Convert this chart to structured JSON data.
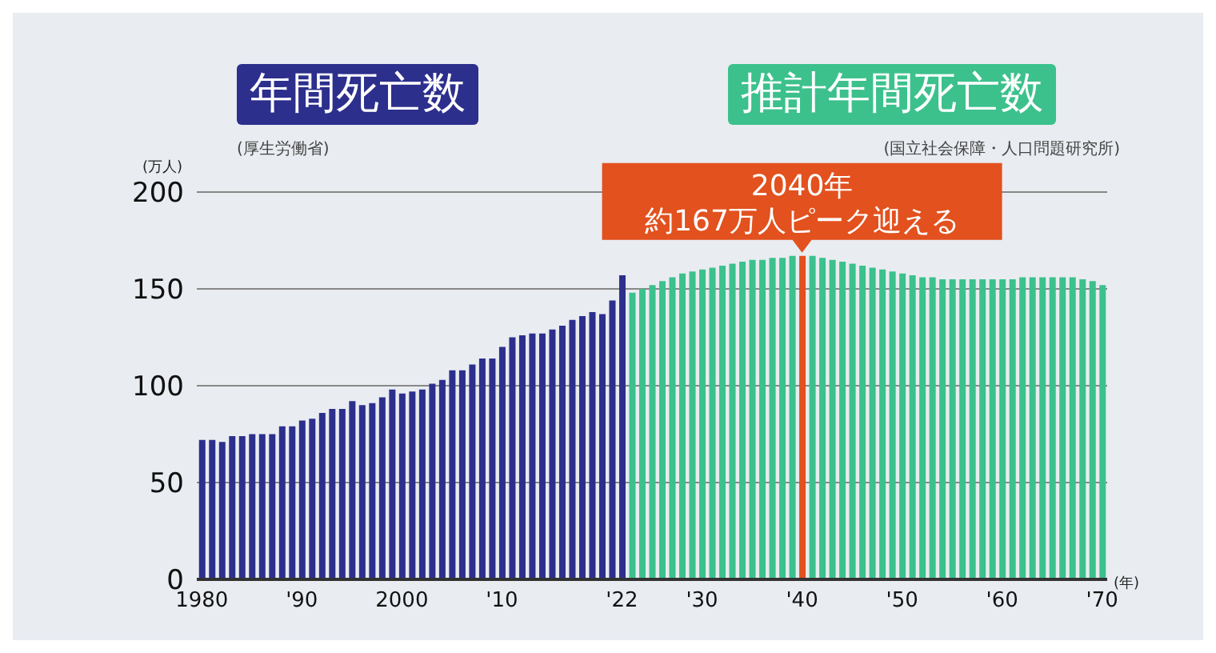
{
  "chart_data": {
    "type": "bar",
    "stacked": true,
    "ylabel": "(万人)",
    "xlabel": "(年)",
    "categories": [
      "1980",
      null,
      null,
      null,
      null,
      null,
      null,
      null,
      null,
      null,
      "'90",
      null,
      null,
      null,
      null,
      null,
      null,
      null,
      null,
      null,
      "2000",
      null,
      null,
      null,
      null,
      null,
      null,
      null,
      null,
      null,
      "'10",
      null,
      null,
      null,
      null,
      null,
      null,
      null,
      null,
      null,
      null,
      null,
      "'22",
      null,
      null,
      null,
      null,
      null,
      null,
      null,
      "'30",
      null,
      null,
      null,
      null,
      null,
      null,
      null,
      null,
      null,
      "'40",
      null,
      null,
      null,
      null,
      null,
      null,
      null,
      null,
      null,
      "'50",
      null,
      null,
      null,
      null,
      null,
      null,
      null,
      null,
      null,
      "'60",
      null,
      null,
      null,
      null,
      null,
      null,
      null,
      null,
      null,
      "'70"
    ],
    "series": [
      {
        "name": "年間死亡数",
        "color": "#2c2f8c",
        "values": [
          72,
          72,
          71,
          74,
          74,
          75,
          75,
          75,
          79,
          79,
          82,
          83,
          86,
          88,
          88,
          92,
          90,
          91,
          94,
          98,
          96,
          97,
          98,
          101,
          103,
          108,
          108,
          111,
          114,
          114,
          120,
          125,
          126,
          127,
          127,
          129,
          131,
          134,
          136,
          138,
          137,
          144,
          157,
          null,
          null,
          null,
          null,
          null,
          null,
          null,
          null,
          null,
          null,
          null,
          null,
          null,
          null,
          null,
          null,
          null,
          null,
          null,
          null,
          null,
          null,
          null,
          null,
          null,
          null,
          null,
          null,
          null,
          null,
          null,
          null,
          null,
          null,
          null,
          null,
          null,
          null,
          null,
          null,
          null,
          null,
          null,
          null,
          null,
          null,
          null,
          null
        ]
      },
      {
        "name": "推計年間死亡数",
        "color": "#3cc18c",
        "values": [
          null,
          null,
          null,
          null,
          null,
          null,
          null,
          null,
          null,
          null,
          null,
          null,
          null,
          null,
          null,
          null,
          null,
          null,
          null,
          null,
          null,
          null,
          null,
          null,
          null,
          null,
          null,
          null,
          null,
          null,
          null,
          null,
          null,
          null,
          null,
          null,
          null,
          null,
          null,
          null,
          null,
          null,
          null,
          148,
          150,
          152,
          154,
          156,
          158,
          159,
          160,
          161,
          162,
          163,
          164,
          165,
          165,
          166,
          166,
          167,
          167,
          167,
          166,
          165,
          164,
          163,
          162,
          161,
          160,
          159,
          158,
          157,
          156,
          156,
          155,
          155,
          155,
          155,
          155,
          155,
          155,
          155,
          156,
          156,
          156,
          156,
          156,
          156,
          155,
          154,
          152
        ],
        "colors": [
          null,
          null,
          null,
          null,
          null,
          null,
          null,
          null,
          null,
          null,
          null,
          null,
          null,
          null,
          null,
          null,
          null,
          null,
          null,
          null,
          null,
          null,
          null,
          null,
          null,
          null,
          null,
          null,
          null,
          null,
          null,
          null,
          null,
          null,
          null,
          null,
          null,
          null,
          null,
          null,
          null,
          null,
          null,
          "#3cc18c",
          "#3cc18c",
          "#3cc18c",
          "#3cc18c",
          "#3cc18c",
          "#3cc18c",
          "#3cc18c",
          "#3cc18c",
          "#3cc18c",
          "#3cc18c",
          "#3cc18c",
          "#3cc18c",
          "#3cc18c",
          "#3cc18c",
          "#3cc18c",
          "#3cc18c",
          "#3cc18c",
          "#e2511e",
          "#3cc18c",
          "#3cc18c",
          "#3cc18c",
          "#3cc18c",
          "#3cc18c",
          "#3cc18c",
          "#3cc18c",
          "#3cc18c",
          "#3cc18c",
          "#3cc18c",
          "#3cc18c",
          "#3cc18c",
          "#3cc18c",
          "#3cc18c",
          "#3cc18c",
          "#3cc18c",
          "#3cc18c",
          "#3cc18c",
          "#3cc18c",
          "#3cc18c",
          "#3cc18c",
          "#3cc18c",
          "#3cc18c",
          "#3cc18c",
          "#3cc18c",
          "#3cc18c",
          "#3cc18c",
          "#3cc18c",
          "#3cc18c",
          "#3cc18c"
        ]
      }
    ],
    "ylim": [
      0,
      200
    ],
    "yticks": [
      0,
      50,
      100,
      150,
      200
    ],
    "grid": "y",
    "legend": "top",
    "annotations": [
      "(厚生労働省)",
      "(国立社会保障・人口問題研究所)",
      {
        "text": "2040年",
        "x": "'40",
        "y": 167
      },
      {
        "text": "約167万人ピーク迎える",
        "x": "'40",
        "y": 167
      }
    ]
  }
}
